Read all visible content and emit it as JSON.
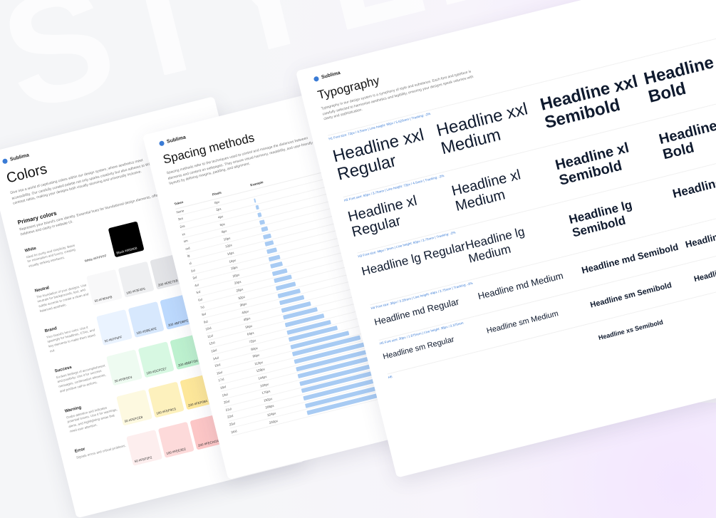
{
  "background_word": "STYLE G",
  "brand": "Sublima",
  "colors": {
    "title": "Colors",
    "intro": "Dive into a world of captivating colors within our design system, where aesthetics meet accessibility. Our carefully curated palette not only sparks creativity but also adheres to WCAG contrast ratios, making your designs both visually stunning and universally inclusive.",
    "section_title": "Primary colors",
    "section_desc": "Represent your brand's core identity. Essential hues for foundational design elements, offering boldness and clarity in website UI.",
    "rows": [
      {
        "name": "White",
        "desc": "Ideal for purity and simplicity. Basis for minimalism and luxury, creating visually striking interfaces.",
        "swatches": [
          {
            "label": "White #FFFFFF",
            "color": "#ffffff"
          },
          {
            "label": "Black #000000",
            "color": "#000000"
          }
        ]
      },
      {
        "name": "Neutral",
        "desc": "The foundation of your designs. Use neutrals for backgrounds, text, and subtle accents to create a clean and balanced aesthetic.",
        "swatches": [
          {
            "label": "50 #F9FAFB",
            "color": "#f8f8f9"
          },
          {
            "label": "100 #F3F4F6",
            "color": "#eeeff1"
          },
          {
            "label": "200 #E5E7EB",
            "color": "#e3e4e7"
          }
        ]
      },
      {
        "name": "Brand",
        "desc": "Your brand's hero color. Use it sparingly for headlines, CTAs, and key elements to make them stand out.",
        "swatches": [
          {
            "label": "50 #EFF6FF",
            "color": "#eaf3ff"
          },
          {
            "label": "100 #DBEAFE",
            "color": "#d7e8fd"
          },
          {
            "label": "200 #BFDBFE",
            "color": "#bcd9fd"
          }
        ]
      },
      {
        "name": "Success",
        "desc": "Evokes feelings of accomplishment and positivity. Use it for success messages, confirmation elements, and positive call-to-actions.",
        "swatches": [
          {
            "label": "50 #F0FDF4",
            "color": "#eefbf1"
          },
          {
            "label": "100 #DCFCE7",
            "color": "#d7f8e2"
          },
          {
            "label": "200 #BBF7D0",
            "color": "#bdf1cf"
          }
        ]
      },
      {
        "name": "Warning",
        "desc": "Grabs attention and indicates potential issues. Use it for warnings, alerts, and highlighting areas that need user attention.",
        "swatches": [
          {
            "label": "50 #FEFCE8",
            "color": "#fdf9e0"
          },
          {
            "label": "100 #FEF9C3",
            "color": "#fdf1bd"
          },
          {
            "label": "200 #FEF08A",
            "color": "#fde79a"
          }
        ]
      },
      {
        "name": "Error",
        "desc": "Signals errors and critical problems.",
        "swatches": [
          {
            "label": "50 #FEF2F2",
            "color": "#fdeeee"
          },
          {
            "label": "100 #FEE2E2",
            "color": "#fddada"
          },
          {
            "label": "200 #FECACA",
            "color": "#fcc6c6"
          }
        ]
      }
    ]
  },
  "spacing": {
    "title": "Spacing methods",
    "intro": "Spacing methods refer to the techniques used to control and manage the distances between elements and content on webpages. They ensure visual harmony, readability, and user-friendly layouts by defining margins, padding, and alignment.",
    "headers": [
      "Token",
      "Pixels",
      "Example"
    ],
    "rows": [
      {
        "token": "None",
        "px": "0px",
        "v": 0
      },
      {
        "token": "3xs",
        "px": "2px",
        "v": 2
      },
      {
        "token": "2xs",
        "px": "4px",
        "v": 4
      },
      {
        "token": "xs",
        "px": "6px",
        "v": 6
      },
      {
        "token": "sm",
        "px": "8px",
        "v": 8
      },
      {
        "token": "md",
        "px": "10px",
        "v": 10
      },
      {
        "token": "lg",
        "px": "12px",
        "v": 12
      },
      {
        "token": "xl",
        "px": "14px",
        "v": 14
      },
      {
        "token": "2xl",
        "px": "16px",
        "v": 16
      },
      {
        "token": "3xl",
        "px": "18px",
        "v": 18
      },
      {
        "token": "4xl",
        "px": "20px",
        "v": 20
      },
      {
        "token": "5xl",
        "px": "24px",
        "v": 24
      },
      {
        "token": "6xl",
        "px": "28px",
        "v": 28
      },
      {
        "token": "7xl",
        "px": "32px",
        "v": 32
      },
      {
        "token": "8xl",
        "px": "36px",
        "v": 36
      },
      {
        "token": "9xl",
        "px": "40px",
        "v": 40
      },
      {
        "token": "10xl",
        "px": "48px",
        "v": 48
      },
      {
        "token": "11xl",
        "px": "56px",
        "v": 56
      },
      {
        "token": "12xl",
        "px": "64px",
        "v": 64
      },
      {
        "token": "13xl",
        "px": "72px",
        "v": 72
      },
      {
        "token": "14xl",
        "px": "80px",
        "v": 80
      },
      {
        "token": "15xl",
        "px": "96px",
        "v": 96
      },
      {
        "token": "16xl",
        "px": "112px",
        "v": 112
      },
      {
        "token": "17xl",
        "px": "128px",
        "v": 128
      },
      {
        "token": "18xl",
        "px": "144px",
        "v": 144
      },
      {
        "token": "19xl",
        "px": "160px",
        "v": 160
      },
      {
        "token": "20xl",
        "px": "176px",
        "v": 176
      },
      {
        "token": "21xl",
        "px": "192px",
        "v": 192
      },
      {
        "token": "22xl",
        "px": "208px",
        "v": 208
      },
      {
        "token": "23xl",
        "px": "224px",
        "v": 224
      },
      {
        "token": "24xl",
        "px": "240px",
        "v": 240
      }
    ]
  },
  "typography": {
    "title": "Typography",
    "intro": "Typography in our design system is a symphony of style and substance. Each font and typeface is carefully selected to harmonize aesthetics and legibility, ensuring your designs speak volumes with clarity and sophistication.",
    "rows": [
      {
        "tag": "H1",
        "meta": "Font size: 72px / 4.5rem | Line height: 90px / 5.625rem | Tracking: -2%",
        "cells": [
          "Headline xxl Regular",
          "Headline xxl Medium",
          "Headline xxl Semibold",
          "Headline xxl Bold"
        ]
      },
      {
        "tag": "H2",
        "meta": "Font size: 60px / 3.75rem | Line height: 72px / 4.5rem | Tracking: -2%",
        "cells": [
          "Headline xl Regular",
          "Headline xl Medium",
          "Headline xl Semibold",
          "Headline xl Bold"
        ]
      },
      {
        "tag": "H3",
        "meta": "Font size: 48px / 3rem | Line height: 60px / 3.75rem | Tracking: -2%",
        "cells": [
          "Headline lg Regular",
          "Headline lg Medium",
          "Headline lg Semibold",
          "Headline lg Bold"
        ]
      },
      {
        "tag": "H4",
        "meta": "Font size: 36px / 2.25rem | Line height: 44px / 2.75rem | Tracking: -2%",
        "cells": [
          "Headline md Regular",
          "Headline md Medium",
          "Headline md Semibold",
          "Headline md Bold"
        ]
      },
      {
        "tag": "H5",
        "meta": "Font size: 30px / 1.875rem | Line height: 38px / 2.375rem",
        "cells": [
          "Headline sm Regular",
          "Headline sm Medium",
          "Headline sm Semibold",
          "Headline sm Bold"
        ]
      },
      {
        "tag": "H6",
        "meta": "",
        "cells": [
          "",
          "",
          "Headline xs Semibold",
          ""
        ]
      }
    ]
  }
}
